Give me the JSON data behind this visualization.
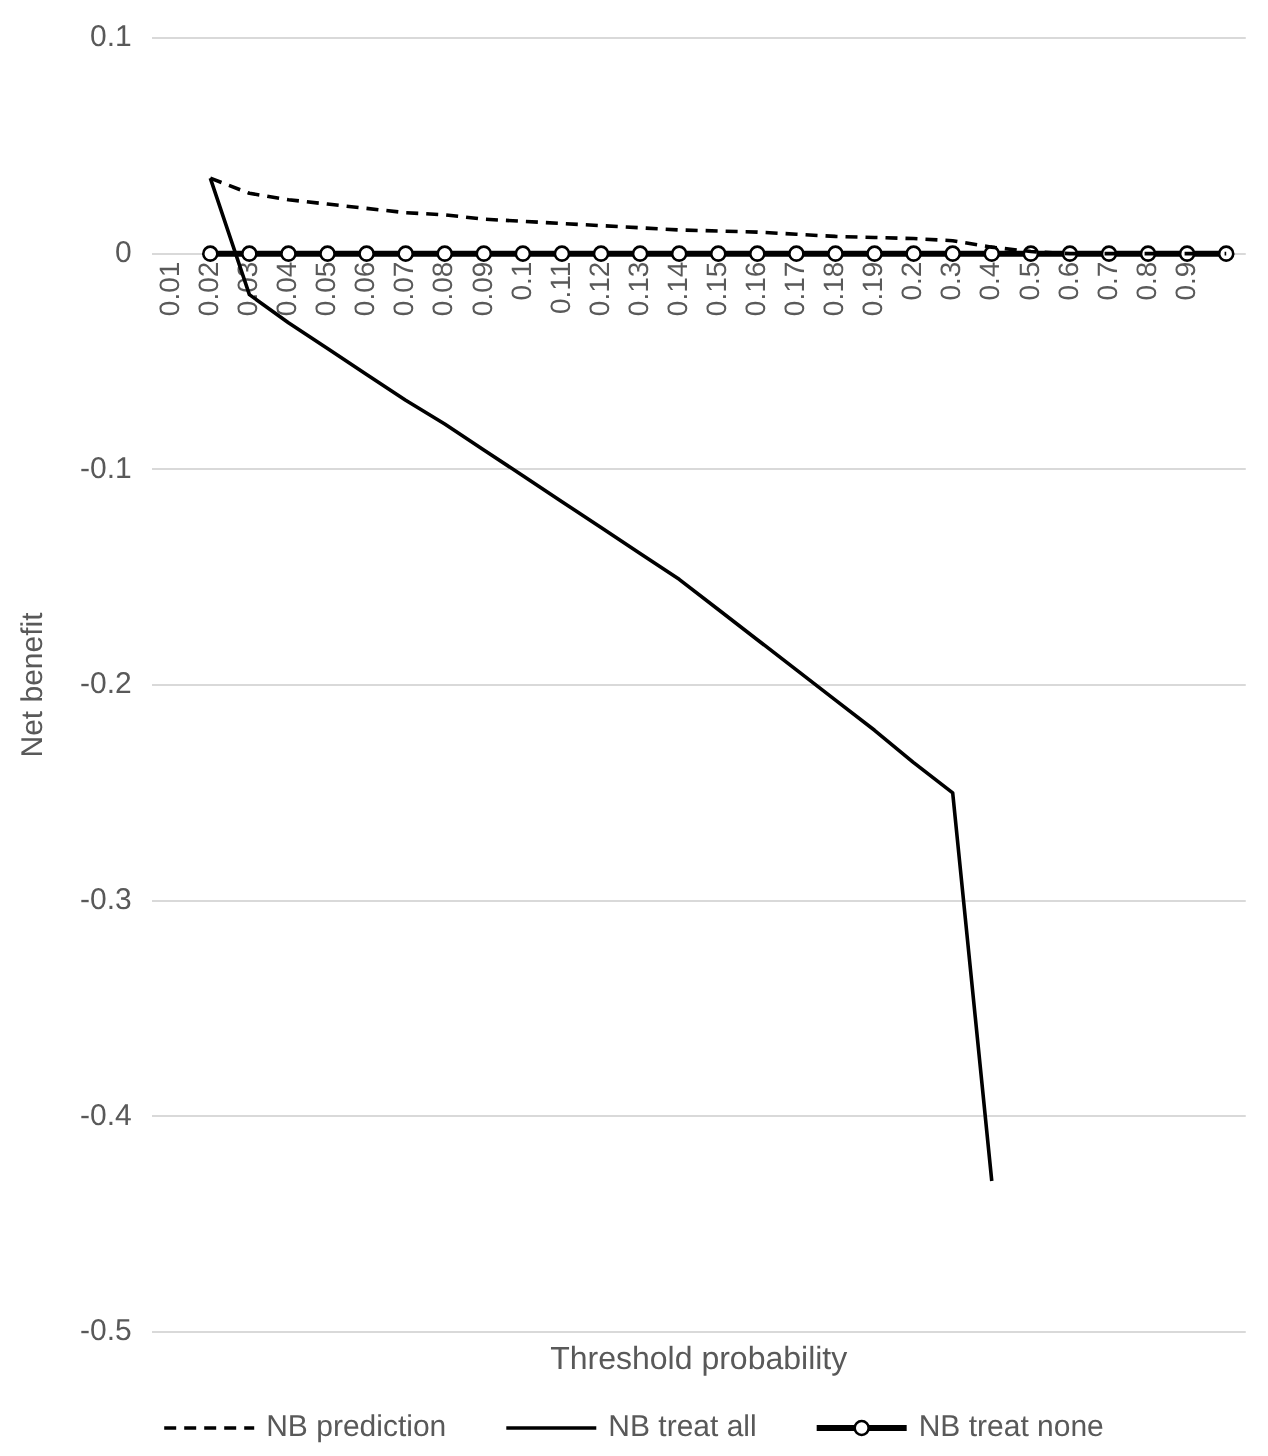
{
  "chart_data": {
    "type": "line",
    "xlabel": "Threshold probability",
    "ylabel": "Net benefit",
    "categories": [
      "0.01",
      "0.02",
      "0.03",
      "0.04",
      "0.05",
      "0.06",
      "0.07",
      "0.08",
      "0.09",
      "0.1",
      "0.11",
      "0.12",
      "0.13",
      "0.14",
      "0.15",
      "0.16",
      "0.17",
      "0.18",
      "0.19",
      "0.2",
      "0.3",
      "0.4",
      "0.5",
      "0.6",
      "0.7",
      "0.8",
      "0.9",
      null
    ],
    "series": [
      {
        "name": "NB prediction",
        "color": "#000000",
        "line_style": "dashed",
        "marker": "none",
        "values": [
          null,
          0.035,
          0.028,
          0.025,
          0.023,
          0.021,
          0.019,
          0.018,
          0.016,
          0.015,
          0.014,
          0.013,
          0.012,
          0.011,
          0.0105,
          0.01,
          0.009,
          0.008,
          0.0075,
          0.007,
          0.006,
          0.003,
          0.001,
          0,
          0,
          0,
          0,
          0
        ]
      },
      {
        "name": "NB treat all",
        "color": "#000000",
        "line_style": "solid",
        "marker": "none",
        "values": [
          null,
          0.035,
          -0.019,
          -0.032,
          -0.044,
          -0.056,
          -0.068,
          -0.079,
          -0.091,
          -0.103,
          -0.115,
          -0.127,
          -0.139,
          -0.151,
          -0.165,
          -0.179,
          -0.193,
          -0.207,
          -0.221,
          -0.236,
          -0.25,
          -0.43,
          null,
          null,
          null,
          null,
          null,
          null
        ]
      },
      {
        "name": "NB treat none",
        "color": "#000000",
        "line_style": "solid",
        "marker": "circle",
        "values": [
          null,
          0,
          0,
          0,
          0,
          0,
          0,
          0,
          0,
          0,
          0,
          0,
          0,
          0,
          0,
          0,
          0,
          0,
          0,
          0,
          0,
          0,
          0,
          0,
          0,
          0,
          0,
          0
        ]
      }
    ],
    "ylim": [
      -0.5,
      0.1
    ],
    "yticks": [
      -0.5,
      -0.4,
      -0.3,
      -0.2,
      -0.1,
      0,
      0.1
    ],
    "grid": "y",
    "legend": "bottom"
  }
}
